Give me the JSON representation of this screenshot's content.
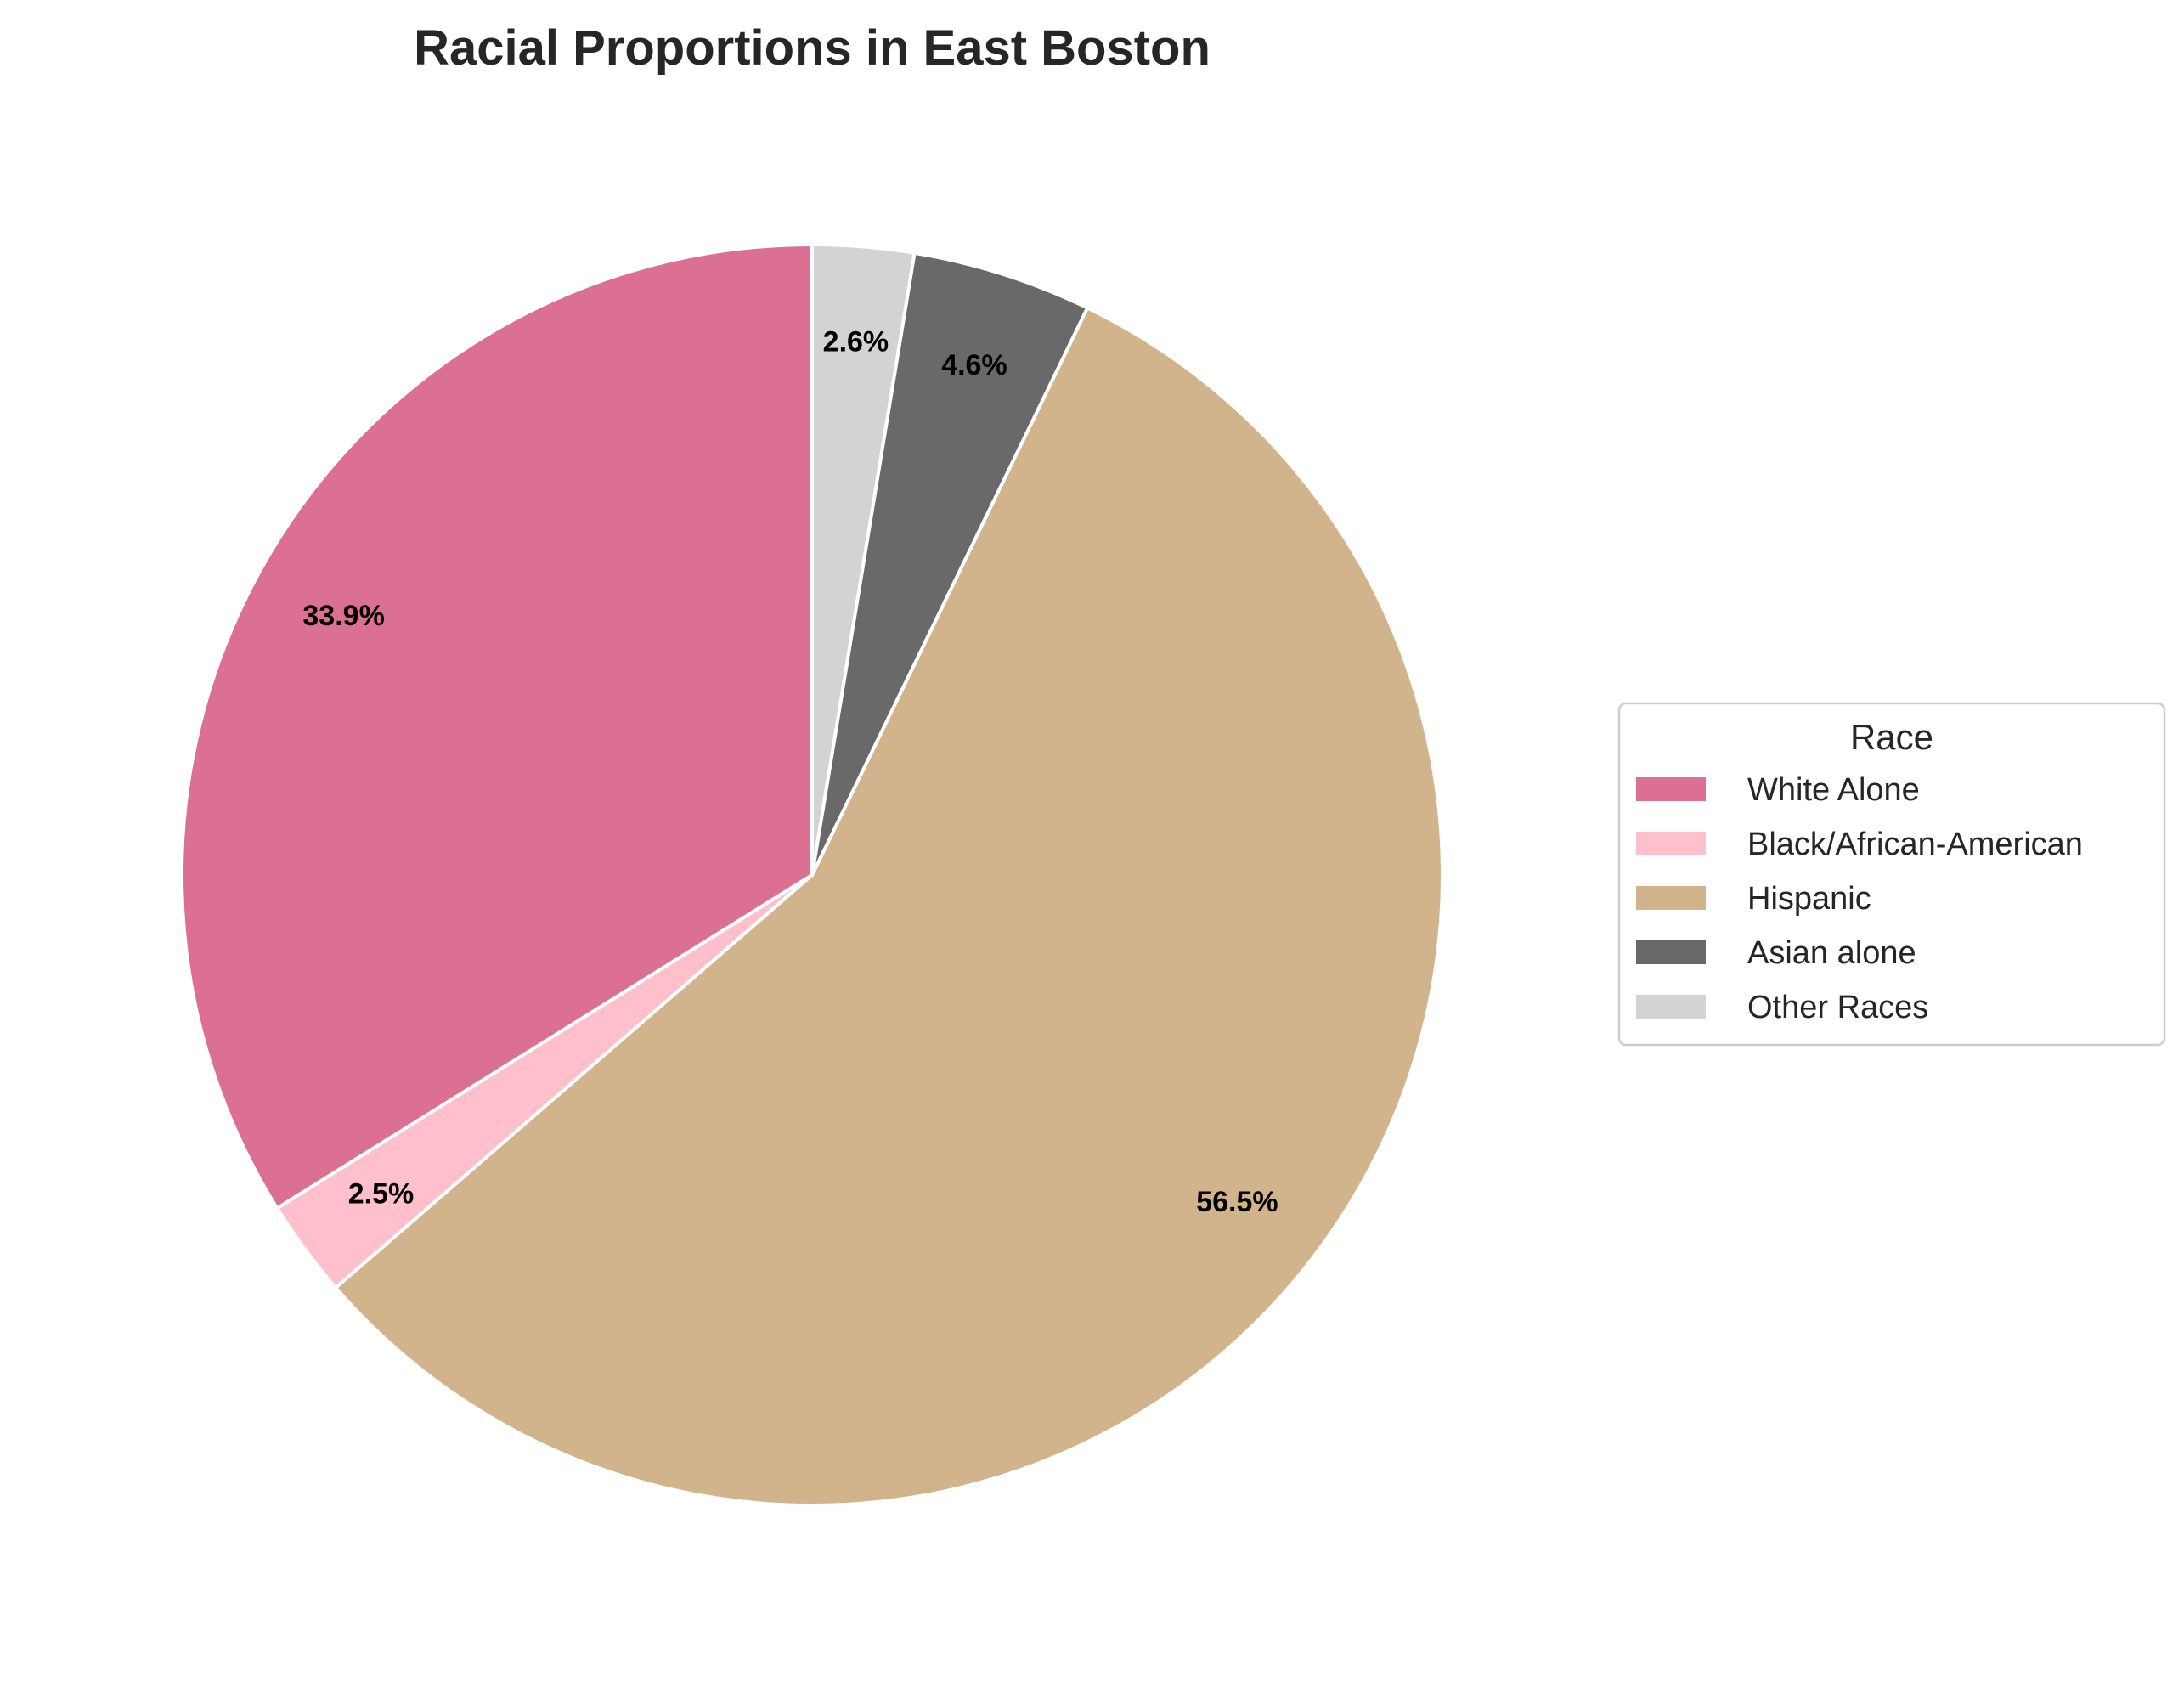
{
  "chart_data": {
    "type": "pie",
    "title": "Racial Proportions in East Boston",
    "categories": [
      "White Alone",
      "Black/African-American",
      "Hispanic",
      "Asian alone",
      "Other Races"
    ],
    "values": [
      33.9,
      2.5,
      56.5,
      4.6,
      2.6
    ],
    "value_labels": [
      "33.9%",
      "2.5%",
      "56.5%",
      "4.6%",
      "2.6%"
    ],
    "colors": [
      "#DB7093",
      "#FFC0CB",
      "#D2B48C",
      "#696969",
      "#D3D3D3"
    ],
    "start_angle": "90° (top), counter-clockwise",
    "edge_color": "#FFFFFF",
    "legend": {
      "title": "Race",
      "placement": "center-right",
      "entries": [
        "White Alone",
        "Black/African-American",
        "Hispanic",
        "Asian alone",
        "Other Races"
      ]
    }
  }
}
